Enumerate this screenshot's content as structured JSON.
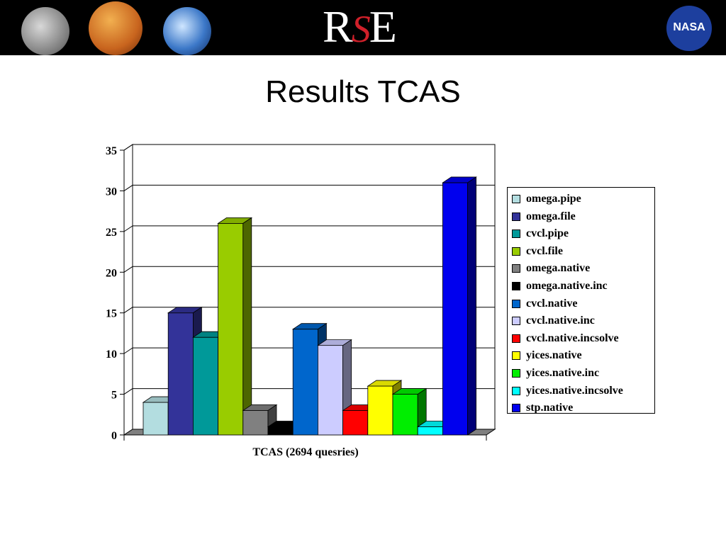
{
  "header": {
    "logo_text_r": "R",
    "logo_text_s": "S",
    "logo_text_e": "E",
    "nasa_text": "NASA",
    "colors": {
      "banner": "#000000",
      "accent": "#d0202a",
      "nasa_blue": "#1d3f9e"
    }
  },
  "slide": {
    "title": "Results TCAS"
  },
  "chart_data": {
    "type": "bar",
    "style": "3d-clustered",
    "xlabel": "TCAS (2694 quesries)",
    "ylabel": "",
    "ylim": [
      0,
      35
    ],
    "yticks": [
      0,
      5,
      10,
      15,
      20,
      25,
      30,
      35
    ],
    "grid": true,
    "legend_position": "right",
    "series": [
      {
        "name": "omega.pipe",
        "value": 4,
        "color": "#b3dde0"
      },
      {
        "name": "omega.file",
        "value": 15,
        "color": "#333399"
      },
      {
        "name": "cvcl.pipe",
        "value": 12,
        "color": "#009999"
      },
      {
        "name": "cvcl.file",
        "value": 26,
        "color": "#99cc00"
      },
      {
        "name": "omega.native",
        "value": 3,
        "color": "#808080"
      },
      {
        "name": "omega.native.inc",
        "value": 1,
        "color": "#000000"
      },
      {
        "name": "cvcl.native",
        "value": 13,
        "color": "#0066cc"
      },
      {
        "name": "cvcl.native.inc",
        "value": 11,
        "color": "#ccccff"
      },
      {
        "name": "cvcl.native.incsolve",
        "value": 3,
        "color": "#ff0000"
      },
      {
        "name": "yices.native",
        "value": 6,
        "color": "#ffff00"
      },
      {
        "name": "yices.native.inc",
        "value": 5,
        "color": "#00ee00"
      },
      {
        "name": "yices.native.incsolve",
        "value": 1,
        "color": "#00ffff"
      },
      {
        "name": "stp.native",
        "value": 31,
        "color": "#0000ee"
      }
    ]
  }
}
